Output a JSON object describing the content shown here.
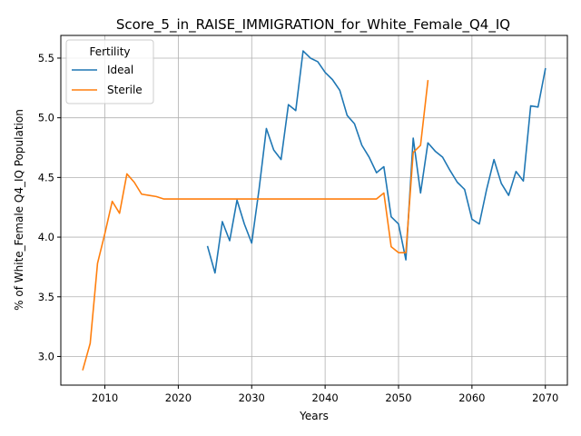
{
  "chart_data": {
    "type": "line",
    "title": "Score_5_in_RAISE_IMMIGRATION_for_White_Female_Q4_IQ",
    "xlabel": "Years",
    "ylabel": "% of White_Female Q4_IQ Population",
    "xlim": [
      2004,
      2073
    ],
    "ylim": [
      2.76,
      5.69
    ],
    "xticks": [
      2010,
      2020,
      2030,
      2040,
      2050,
      2060,
      2070
    ],
    "yticks": [
      3.0,
      3.5,
      4.0,
      4.5,
      5.0,
      5.5
    ],
    "xtick_labels": [
      "2010",
      "2020",
      "2030",
      "2040",
      "2050",
      "2060",
      "2070"
    ],
    "ytick_labels": [
      "3.0",
      "3.5",
      "4.0",
      "4.5",
      "5.0",
      "5.5"
    ],
    "grid": true,
    "legend": {
      "title": "Fertility",
      "placement": "top-left"
    },
    "series": [
      {
        "name": "Ideal",
        "color": "#1f77b4",
        "x": [
          2024,
          2025,
          2026,
          2027,
          2028,
          2029,
          2030,
          2031,
          2032,
          2033,
          2034,
          2035,
          2036,
          2037,
          2038,
          2039,
          2040,
          2041,
          2042,
          2043,
          2044,
          2045,
          2046,
          2047,
          2048,
          2049,
          2050,
          2051,
          2052,
          2053,
          2054,
          2055,
          2056,
          2057,
          2058,
          2059,
          2060,
          2061,
          2062,
          2063,
          2064,
          2065,
          2066,
          2067,
          2068,
          2069,
          2070
        ],
        "y": [
          3.92,
          3.7,
          4.13,
          3.97,
          4.31,
          4.11,
          3.95,
          4.4,
          4.91,
          4.73,
          4.65,
          5.11,
          5.06,
          5.56,
          5.5,
          5.47,
          5.38,
          5.32,
          5.23,
          5.02,
          4.95,
          4.77,
          4.67,
          4.54,
          4.59,
          4.17,
          4.11,
          3.81,
          4.83,
          4.37,
          4.79,
          4.72,
          4.67,
          4.56,
          4.46,
          4.4,
          4.15,
          4.11,
          4.4,
          4.65,
          4.45,
          4.35,
          4.55,
          4.47,
          5.1,
          5.09,
          5.41
        ]
      },
      {
        "name": "Sterile",
        "color": "#ff7f0e",
        "x": [
          2007,
          2008,
          2009,
          2010,
          2011,
          2012,
          2013,
          2014,
          2015,
          2016,
          2017,
          2018,
          2019,
          2020,
          2021,
          2022,
          2023,
          2024,
          2025,
          2026,
          2027,
          2028,
          2029,
          2030,
          2031,
          2032,
          2033,
          2034,
          2035,
          2036,
          2037,
          2038,
          2039,
          2040,
          2041,
          2042,
          2043,
          2044,
          2045,
          2046,
          2047,
          2048,
          2049,
          2050,
          2051,
          2052,
          2053,
          2054
        ],
        "y": [
          2.89,
          3.11,
          3.78,
          4.03,
          4.3,
          4.2,
          4.53,
          4.46,
          4.36,
          4.35,
          4.34,
          4.32,
          4.32,
          4.32,
          4.32,
          4.32,
          4.32,
          4.32,
          4.32,
          4.32,
          4.32,
          4.32,
          4.32,
          4.32,
          4.32,
          4.32,
          4.32,
          4.32,
          4.32,
          4.32,
          4.32,
          4.32,
          4.32,
          4.32,
          4.32,
          4.32,
          4.32,
          4.32,
          4.32,
          4.32,
          4.32,
          4.37,
          3.92,
          3.87,
          3.87,
          4.71,
          4.77,
          5.31
        ]
      }
    ]
  }
}
